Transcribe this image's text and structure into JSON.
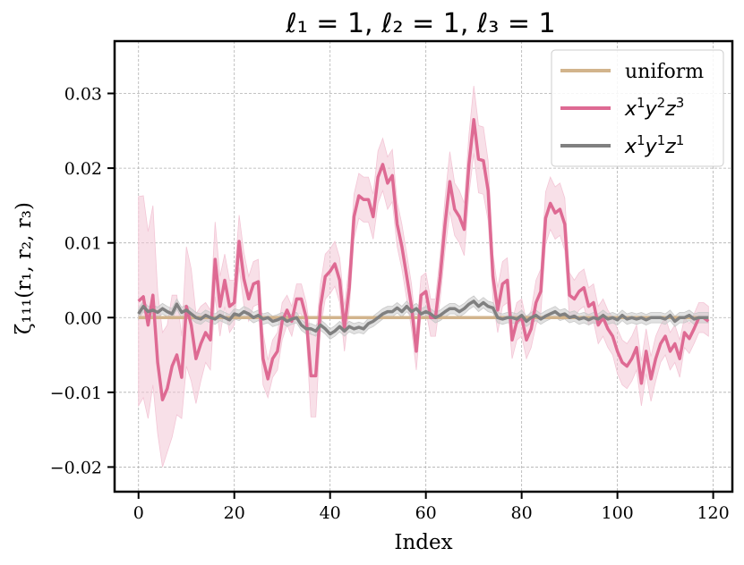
{
  "chart_data": {
    "type": "line",
    "title": "ℓ₁ = 1, ℓ₂ = 1, ℓ₃ = 1",
    "xlabel": "Index",
    "ylabel": "ζ₁₁₁(r₁, r₂, r₃)",
    "xlim": [
      -5,
      124
    ],
    "ylim": [
      -0.0233,
      0.037
    ],
    "xticks": [
      0,
      20,
      40,
      60,
      80,
      100,
      120
    ],
    "xtick_labels": [
      "0",
      "20",
      "40",
      "60",
      "80",
      "100",
      "120"
    ],
    "yticks": [
      -0.02,
      -0.01,
      0.0,
      0.01,
      0.02,
      0.03
    ],
    "ytick_labels": [
      "−0.02",
      "−0.01",
      "0.00",
      "0.01",
      "0.02",
      "0.03"
    ],
    "grid": true,
    "legend_position": "top-right",
    "colors": {
      "uniform": "#d2b48c",
      "x1y2z3": "#de6a93",
      "x1y2z3_band": "#f3c6d6",
      "x1y1z1": "#808080",
      "x1y1z1_band": "#c8c8c8"
    },
    "series": [
      {
        "name": "uniform",
        "legend_parts": [
          "uniform"
        ],
        "x": [
          0,
          119
        ],
        "values": [
          0.0,
          0.0
        ]
      },
      {
        "name": "x¹y²z³",
        "legend_parts": [
          "x",
          "1",
          "y",
          "2",
          "z",
          "3"
        ],
        "x": [
          0,
          1,
          2,
          3,
          4,
          5,
          6,
          7,
          8,
          9,
          10,
          11,
          12,
          13,
          14,
          15,
          16,
          17,
          18,
          19,
          20,
          21,
          22,
          23,
          24,
          25,
          26,
          27,
          28,
          29,
          30,
          31,
          32,
          33,
          34,
          35,
          36,
          37,
          38,
          39,
          40,
          41,
          42,
          43,
          44,
          45,
          46,
          47,
          48,
          49,
          50,
          51,
          52,
          53,
          54,
          55,
          56,
          57,
          58,
          59,
          60,
          61,
          62,
          63,
          64,
          65,
          66,
          67,
          68,
          69,
          70,
          71,
          72,
          73,
          74,
          75,
          76,
          77,
          78,
          79,
          80,
          81,
          82,
          83,
          84,
          85,
          86,
          87,
          88,
          89,
          90,
          91,
          92,
          93,
          94,
          95,
          96,
          97,
          98,
          99,
          100,
          101,
          102,
          103,
          104,
          105,
          106,
          107,
          108,
          109,
          110,
          111,
          112,
          113,
          114,
          115,
          116,
          117,
          118,
          119
        ],
        "values": [
          0.0022,
          0.0028,
          -0.001,
          0.003,
          -0.006,
          -0.011,
          -0.0095,
          -0.0065,
          -0.005,
          -0.008,
          0.0015,
          -0.001,
          -0.0055,
          -0.0035,
          -0.002,
          -0.003,
          0.0078,
          0.0015,
          0.005,
          0.0015,
          0.002,
          0.0102,
          0.0052,
          0.0025,
          0.0045,
          0.0048,
          -0.0055,
          -0.0082,
          -0.0055,
          -0.0045,
          -0.0005,
          0.001,
          -0.0005,
          0.0025,
          0.0025,
          0.0,
          -0.0078,
          -0.0078,
          0.0015,
          0.0055,
          0.0062,
          0.0072,
          0.005,
          -0.0015,
          0.004,
          0.0135,
          0.0163,
          0.0158,
          0.0158,
          0.0135,
          0.0188,
          0.0205,
          0.018,
          0.019,
          0.0125,
          0.0095,
          0.0055,
          0.0015,
          -0.0045,
          0.003,
          0.0035,
          0.0,
          0.0,
          0.0055,
          0.0125,
          0.0182,
          0.0145,
          0.0135,
          0.0118,
          0.0205,
          0.0265,
          0.0212,
          0.021,
          0.017,
          0.0055,
          0.001,
          0.0045,
          0.005,
          -0.003,
          -0.0005,
          0.0,
          -0.003,
          -0.0015,
          0.002,
          0.0035,
          0.0133,
          0.0153,
          0.014,
          0.0145,
          0.0125,
          0.003,
          0.0025,
          0.0035,
          0.004,
          0.0015,
          0.002,
          -0.001,
          0.0,
          -0.0015,
          -0.0025,
          -0.0045,
          -0.006,
          -0.0065,
          -0.0055,
          -0.004,
          -0.0088,
          -0.0045,
          -0.0082,
          -0.0055,
          -0.0035,
          -0.0025,
          -0.0045,
          -0.0035,
          -0.0055,
          -0.002,
          -0.0028,
          -0.0015,
          0.0,
          0.0,
          -0.0005
        ],
        "band_half_width": [
          0.014,
          0.0135,
          0.0125,
          0.012,
          0.0095,
          0.009,
          0.0085,
          0.0095,
          0.008,
          0.0055,
          0.008,
          0.0075,
          0.006,
          0.005,
          0.004,
          0.004,
          0.005,
          0.004,
          0.0035,
          0.0035,
          0.003,
          0.0035,
          0.0035,
          0.003,
          0.003,
          0.003,
          0.0035,
          0.0025,
          0.0025,
          0.0025,
          0.0025,
          0.002,
          0.002,
          0.002,
          0.002,
          0.002,
          0.0055,
          0.0055,
          0.003,
          0.003,
          0.003,
          0.003,
          0.003,
          0.003,
          0.003,
          0.003,
          0.003,
          0.003,
          0.003,
          0.003,
          0.0035,
          0.0035,
          0.0035,
          0.0035,
          0.003,
          0.003,
          0.003,
          0.003,
          0.0025,
          0.0025,
          0.0025,
          0.0025,
          0.0025,
          0.003,
          0.0035,
          0.004,
          0.0035,
          0.0035,
          0.0035,
          0.004,
          0.0045,
          0.0045,
          0.0045,
          0.004,
          0.003,
          0.003,
          0.003,
          0.003,
          0.0025,
          0.0025,
          0.0025,
          0.0025,
          0.0025,
          0.003,
          0.003,
          0.0035,
          0.0035,
          0.0035,
          0.0035,
          0.0035,
          0.003,
          0.0025,
          0.0025,
          0.0025,
          0.0025,
          0.0025,
          0.0025,
          0.0025,
          0.0025,
          0.0025,
          0.003,
          0.003,
          0.003,
          0.003,
          0.003,
          0.003,
          0.003,
          0.003,
          0.003,
          0.0025,
          0.0025,
          0.0025,
          0.0025,
          0.0025,
          0.002,
          0.002,
          0.002,
          0.002,
          0.002,
          0.002
        ]
      },
      {
        "name": "x¹y¹z¹",
        "legend_parts": [
          "x",
          "1",
          "y",
          "1",
          "z",
          "1"
        ],
        "x": [
          0,
          1,
          2,
          3,
          4,
          5,
          6,
          7,
          8,
          9,
          10,
          11,
          12,
          13,
          14,
          15,
          16,
          17,
          18,
          19,
          20,
          21,
          22,
          23,
          24,
          25,
          26,
          27,
          28,
          29,
          30,
          31,
          32,
          33,
          34,
          35,
          36,
          37,
          38,
          39,
          40,
          41,
          42,
          43,
          44,
          45,
          46,
          47,
          48,
          49,
          50,
          51,
          52,
          53,
          54,
          55,
          56,
          57,
          58,
          59,
          60,
          61,
          62,
          63,
          64,
          65,
          66,
          67,
          68,
          69,
          70,
          71,
          72,
          73,
          74,
          75,
          76,
          77,
          78,
          79,
          80,
          81,
          82,
          83,
          84,
          85,
          86,
          87,
          88,
          89,
          90,
          91,
          92,
          93,
          94,
          95,
          96,
          97,
          98,
          99,
          100,
          101,
          102,
          103,
          104,
          105,
          106,
          107,
          108,
          109,
          110,
          111,
          112,
          113,
          114,
          115,
          116,
          117,
          118,
          119
        ],
        "values": [
          0.0005,
          0.0015,
          0.0008,
          0.001,
          0.0007,
          0.0012,
          0.0008,
          0.0005,
          0.0018,
          0.0007,
          0.001,
          0.0005,
          0.0,
          -0.0002,
          0.0003,
          0.0,
          -0.0002,
          0.0003,
          0.0,
          -0.0003,
          0.0005,
          0.0003,
          0.0008,
          0.0005,
          0.0,
          0.0003,
          -0.0002,
          0.0,
          -0.0005,
          -0.0003,
          0.0,
          -0.0005,
          -0.0002,
          0.0,
          -0.001,
          -0.0015,
          -0.0015,
          -0.0018,
          -0.001,
          -0.0015,
          -0.0022,
          -0.0018,
          -0.0012,
          -0.0018,
          -0.0012,
          -0.0015,
          -0.0013,
          -0.0015,
          -0.0008,
          -0.0005,
          0.0,
          0.0005,
          0.0008,
          0.0008,
          0.0013,
          0.0008,
          0.0015,
          0.0008,
          0.0012,
          0.0005,
          0.0008,
          0.0005,
          0.0,
          0.0003,
          0.0008,
          0.0012,
          0.0012,
          0.0008,
          0.0012,
          0.0018,
          0.0022,
          0.0015,
          0.002,
          0.0015,
          0.0013,
          0.0,
          -0.0002,
          0.0,
          0.0,
          -0.0002,
          0.0003,
          -0.0005,
          0.0,
          0.0003,
          -0.0002,
          0.0002,
          0.0005,
          0.0008,
          0.0003,
          0.0005,
          0.0,
          0.0002,
          -0.0002,
          0.0,
          -0.0003,
          0.0,
          -0.0002,
          0.0003,
          -0.0002,
          0.0,
          -0.0003,
          0.0003,
          -0.0002,
          0.0,
          -0.0002,
          0.0,
          -0.0003,
          0.0,
          0.0,
          0.0,
          -0.0002,
          0.0003,
          -0.0005,
          0.0,
          0.0,
          0.0003,
          -0.0002,
          0.0,
          0.0,
          0.0
        ],
        "band_half_width": [
          0.0007,
          0.0007,
          0.0007,
          0.0007,
          0.0007,
          0.0007,
          0.0007,
          0.0007,
          0.0007,
          0.0007,
          0.0007,
          0.0007,
          0.0007,
          0.0007,
          0.0007,
          0.0007,
          0.0007,
          0.0007,
          0.0007,
          0.0007,
          0.0007,
          0.0007,
          0.0007,
          0.0007,
          0.0007,
          0.0007,
          0.0007,
          0.0007,
          0.0007,
          0.0007,
          0.0007,
          0.0007,
          0.0007,
          0.0007,
          0.0007,
          0.0007,
          0.0007,
          0.0007,
          0.0007,
          0.0007,
          0.0007,
          0.0007,
          0.0007,
          0.0007,
          0.0007,
          0.0007,
          0.0007,
          0.0007,
          0.0007,
          0.0007,
          0.0007,
          0.0007,
          0.0007,
          0.0007,
          0.0007,
          0.0007,
          0.0007,
          0.0007,
          0.0007,
          0.0007,
          0.0007,
          0.0007,
          0.0007,
          0.0007,
          0.0007,
          0.0007,
          0.0007,
          0.0007,
          0.0007,
          0.0007,
          0.0007,
          0.0007,
          0.0007,
          0.0007,
          0.0007,
          0.0007,
          0.0007,
          0.0007,
          0.0007,
          0.0007,
          0.0007,
          0.0007,
          0.0007,
          0.0007,
          0.0007,
          0.0007,
          0.0007,
          0.0007,
          0.0007,
          0.0007,
          0.0007,
          0.0007,
          0.0007,
          0.0007,
          0.0007,
          0.0007,
          0.0007,
          0.0007,
          0.0007,
          0.0007,
          0.0007,
          0.0007,
          0.0007,
          0.0007,
          0.0007,
          0.0007,
          0.0007,
          0.0007,
          0.0007,
          0.0007,
          0.0007,
          0.0007,
          0.0007,
          0.0007,
          0.0007,
          0.0007,
          0.0007,
          0.0007,
          0.0007,
          0.0007
        ]
      }
    ]
  }
}
